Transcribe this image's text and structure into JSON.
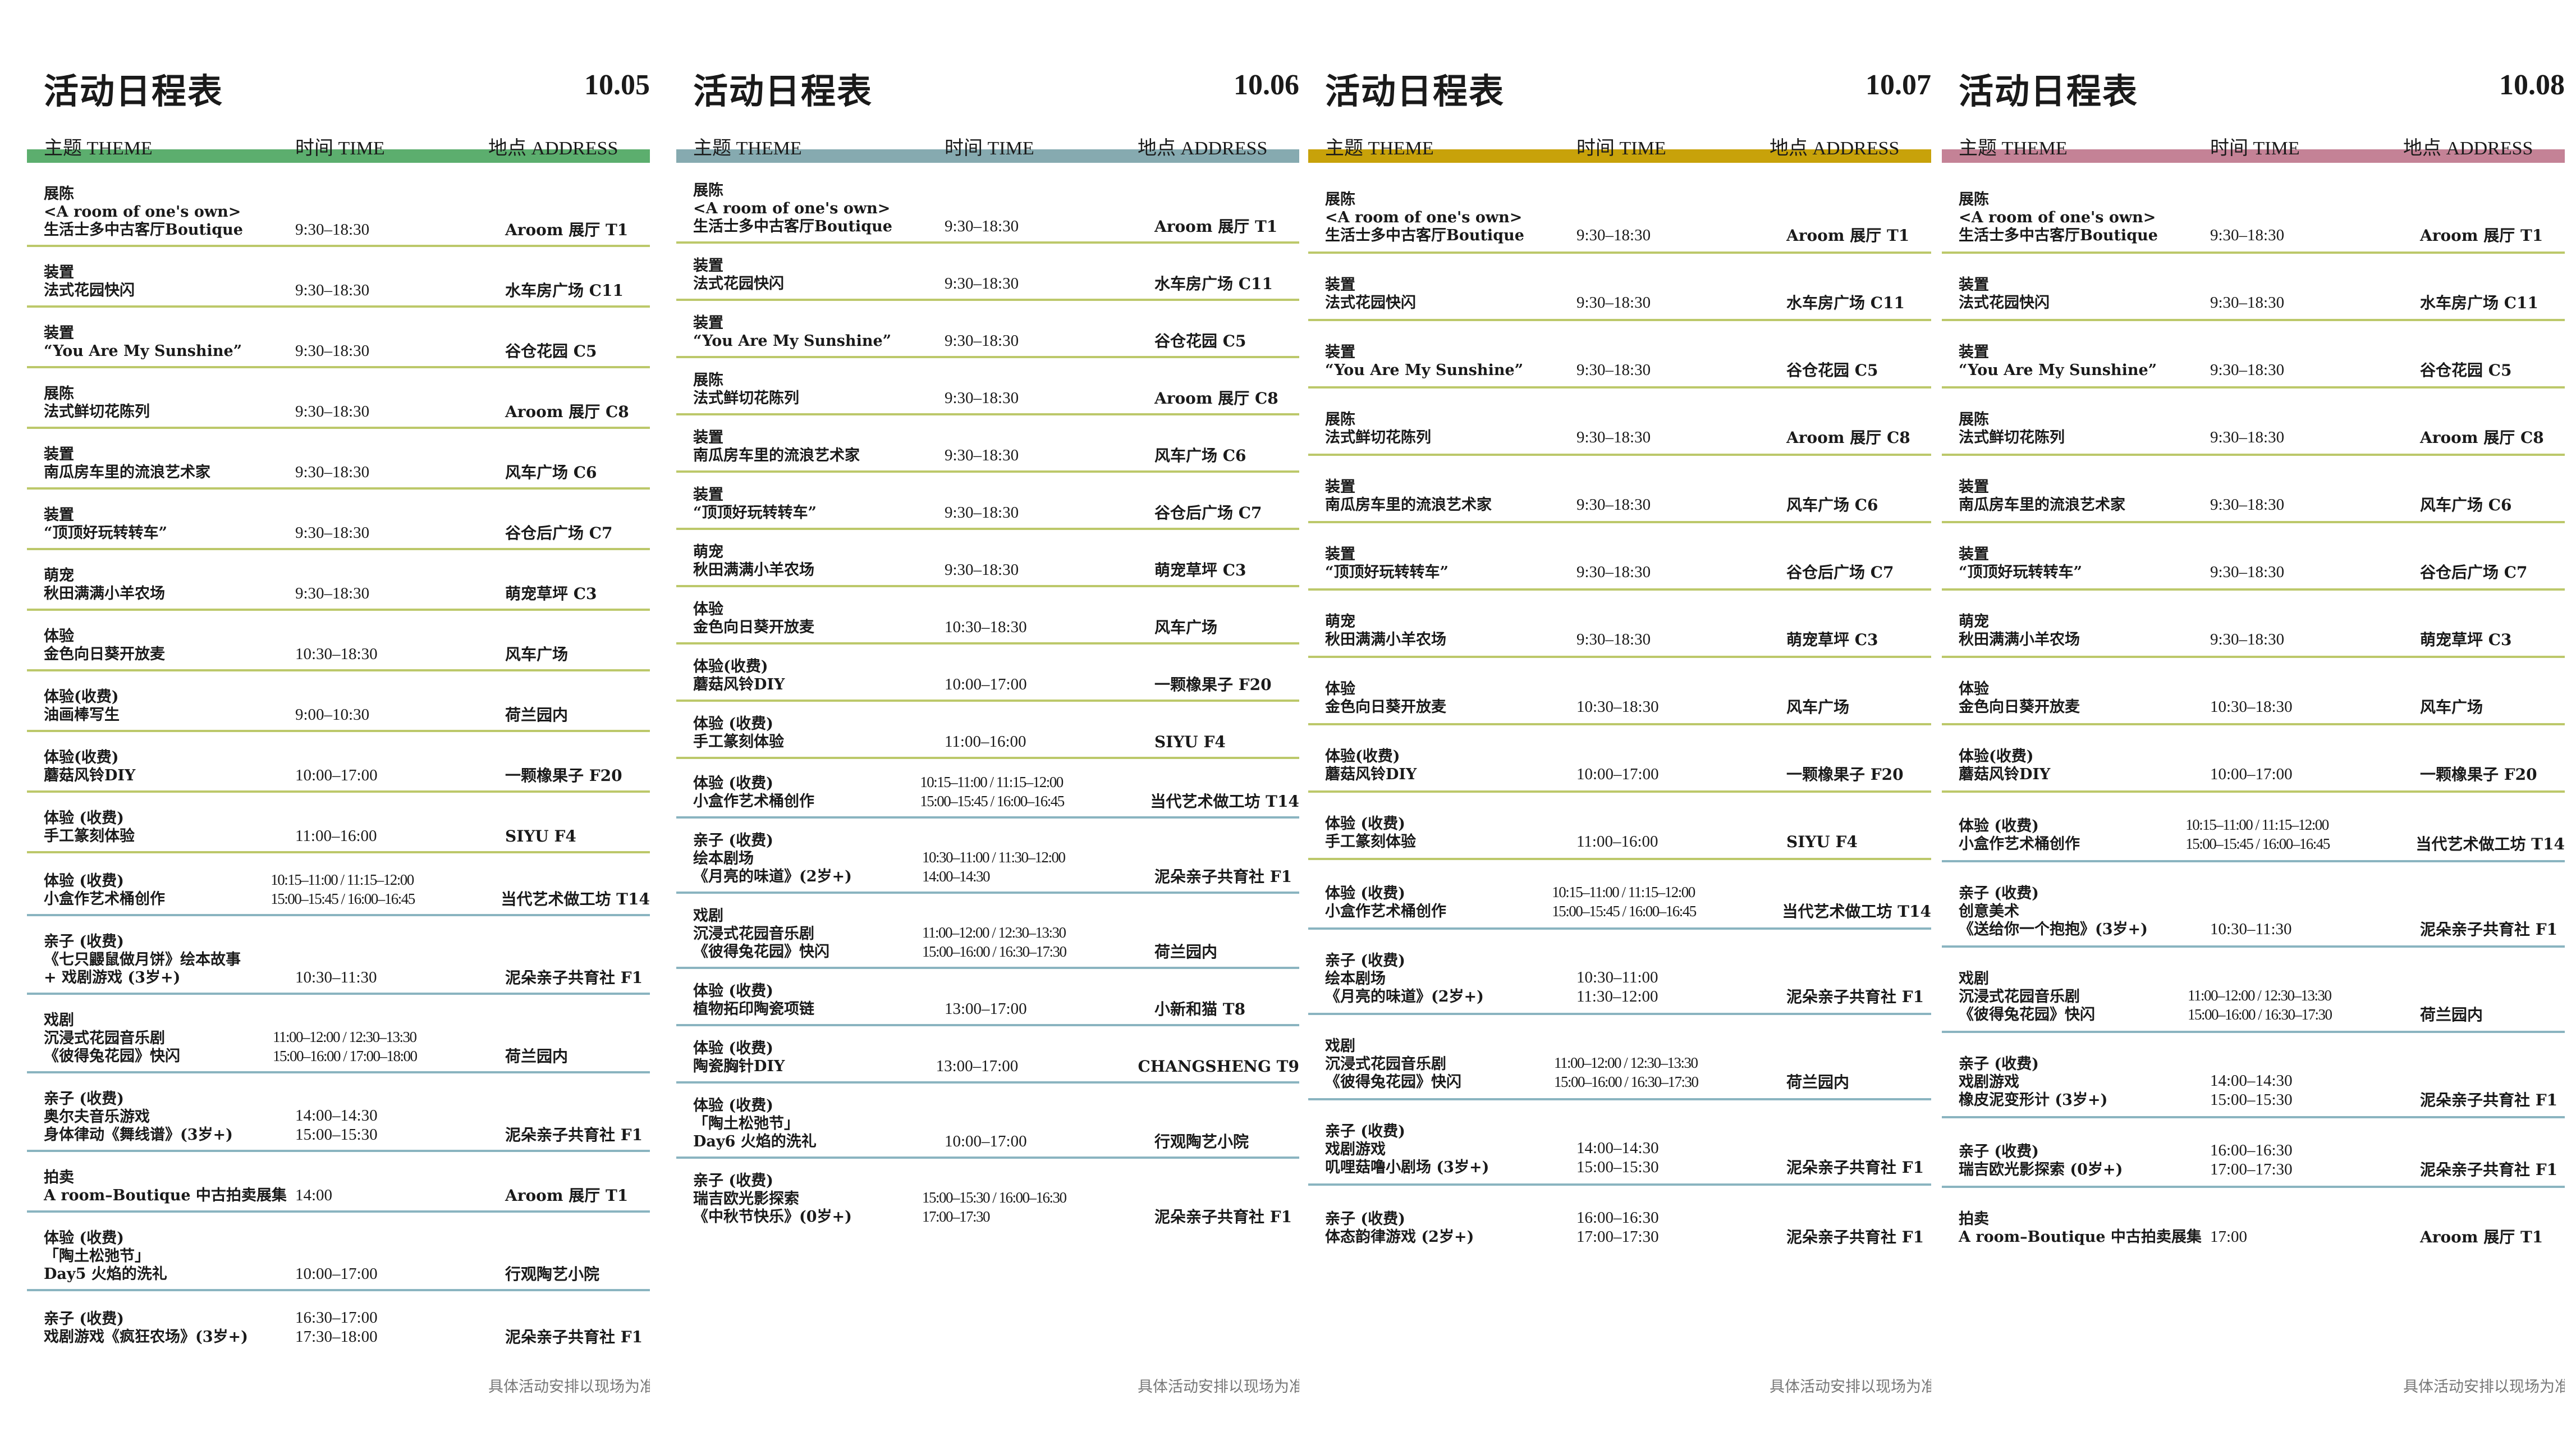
{
  "title": "活动日程表",
  "headers": {
    "theme": "主题 THEME",
    "time": "时间 TIME",
    "address": "地点 ADDRESS"
  },
  "footnote": "具体活动安排以现场为准",
  "colors": {
    "line_olive": "#bcc86a",
    "line_blue": "#8ab4c0"
  },
  "days": [
    {
      "date": "10.05",
      "accent": "#5cae6e",
      "rows": [
        {
          "theme": [
            "展陈",
            "<A room of one's own>",
            "生活士多中古客厅Boutique"
          ],
          "time": [
            "9:30–18:30"
          ],
          "address": "Aroom 展厅 T1",
          "line": "#bcc86a"
        },
        {
          "theme": [
            "装置",
            "法式花园快闪"
          ],
          "time": [
            "9:30–18:30"
          ],
          "address": "水车房广场  C11",
          "line": "#bcc86a"
        },
        {
          "theme": [
            "装置",
            "“You Are My Sunshine”"
          ],
          "time": [
            "9:30–18:30"
          ],
          "address": "谷仓花园 C5",
          "line": "#bcc86a"
        },
        {
          "theme": [
            "展陈",
            "法式鲜切花陈列"
          ],
          "time": [
            "9:30–18:30"
          ],
          "address": "Aroom 展厅 C8",
          "line": "#bcc86a"
        },
        {
          "theme": [
            "装置",
            "南瓜房车里的流浪艺术家"
          ],
          "time": [
            "9:30–18:30"
          ],
          "address": "风车广场 C6",
          "line": "#bcc86a"
        },
        {
          "theme": [
            "装置",
            "“顶顶好玩转转车”"
          ],
          "time": [
            "9:30–18:30"
          ],
          "address": "谷仓后广场 C7",
          "line": "#bcc86a"
        },
        {
          "theme": [
            "萌宠",
            "秋田满满小羊农场"
          ],
          "time": [
            "9:30–18:30"
          ],
          "address": "萌宠草坪 C3",
          "line": "#bcc86a"
        },
        {
          "theme": [
            "体验",
            "金色向日葵开放麦"
          ],
          "time": [
            "10:30–18:30"
          ],
          "address": "风车广场",
          "line": "#bcc86a"
        },
        {
          "theme": [
            "体验(收费)",
            "油画棒写生"
          ],
          "time": [
            "9:00–10:30"
          ],
          "address": "荷兰园内",
          "line": "#bcc86a"
        },
        {
          "theme": [
            "体验(收费)",
            "蘑菇风铃DIY"
          ],
          "time": [
            "10:00–17:00"
          ],
          "address": "一颗橡果子 F20",
          "line": "#bcc86a"
        },
        {
          "theme": [
            "体验 (收费)",
            "手工篆刻体验"
          ],
          "time": [
            "11:00–16:00"
          ],
          "address": "SIYU F4",
          "line": "#bcc86a"
        },
        {
          "theme": [
            "体验 (收费)",
            "小盒作艺术桶创作"
          ],
          "time": [
            "10:15–11:00 / 11:15–12:00",
            "15:00–15:45 / 16:00–16:45"
          ],
          "address": "当代艺术做工坊 T14",
          "line": "#8ab4c0"
        },
        {
          "theme": [
            "亲子 (收费)",
            "《七只鼹鼠做月饼》绘本故事",
            "+ 戏剧游戏 (3岁+)"
          ],
          "time": [
            "10:30–11:30"
          ],
          "address": "泥朵亲子共育社 F1",
          "line": "#8ab4c0"
        },
        {
          "theme": [
            "戏剧",
            "沉浸式花园音乐剧",
            "《彼得兔花园》快闪"
          ],
          "time": [
            "11:00–12:00 / 12:30–13:30",
            "15:00–16:00 / 17:00–18:00"
          ],
          "address": "荷兰园内",
          "line": "#8ab4c0"
        },
        {
          "theme": [
            "亲子 (收费)",
            "奥尔夫音乐游戏",
            "身体律动《舞线谱》(3岁+)"
          ],
          "time": [
            "14:00–14:30",
            "15:00–15:30"
          ],
          "address": "泥朵亲子共育社 F1",
          "line": "#8ab4c0"
        },
        {
          "theme": [
            "拍卖",
            "A room–Boutique 中古拍卖展集"
          ],
          "time": [
            "14:00"
          ],
          "address": "Aroom 展厅 T1",
          "line": "#8ab4c0"
        },
        {
          "theme": [
            "体验 (收费)",
            "「陶土松弛节」",
            "Day5 火焰的洗礼"
          ],
          "time": [
            "10:00–17:00"
          ],
          "address": "行观陶艺小院",
          "line": "#8ab4c0"
        },
        {
          "theme": [
            "亲子 (收费)",
            "戏剧游戏《疯狂农场》(3岁+)"
          ],
          "time": [
            "16:30–17:00",
            "17:30–18:00"
          ],
          "address": "泥朵亲子共育社 F1",
          "line": "#8ab4c0"
        }
      ]
    },
    {
      "date": "10.06",
      "accent": "#86aab0",
      "rows": [
        {
          "theme": [
            "展陈",
            "<A room of one's own>",
            "生活士多中古客厅Boutique"
          ],
          "time": [
            "9:30–18:30"
          ],
          "address": "Aroom 展厅 T1",
          "line": "#bcc86a"
        },
        {
          "theme": [
            "装置",
            "法式花园快闪"
          ],
          "time": [
            "9:30–18:30"
          ],
          "address": "水车房广场  C11",
          "line": "#bcc86a"
        },
        {
          "theme": [
            "装置",
            "“You Are My Sunshine”"
          ],
          "time": [
            "9:30–18:30"
          ],
          "address": "谷仓花园 C5",
          "line": "#bcc86a"
        },
        {
          "theme": [
            "展陈",
            "法式鲜切花陈列"
          ],
          "time": [
            "9:30–18:30"
          ],
          "address": "Aroom 展厅 C8",
          "line": "#bcc86a"
        },
        {
          "theme": [
            "装置",
            "南瓜房车里的流浪艺术家"
          ],
          "time": [
            "9:30–18:30"
          ],
          "address": "风车广场 C6",
          "line": "#bcc86a"
        },
        {
          "theme": [
            "装置",
            "“顶顶好玩转转车”"
          ],
          "time": [
            "9:30–18:30"
          ],
          "address": "谷仓后广场 C7",
          "line": "#bcc86a"
        },
        {
          "theme": [
            "萌宠",
            "秋田满满小羊农场"
          ],
          "time": [
            "9:30–18:30"
          ],
          "address": "萌宠草坪 C3",
          "line": "#bcc86a"
        },
        {
          "theme": [
            "体验",
            "金色向日葵开放麦"
          ],
          "time": [
            "10:30–18:30"
          ],
          "address": "风车广场",
          "line": "#bcc86a"
        },
        {
          "theme": [
            "体验(收费)",
            "蘑菇风铃DIY"
          ],
          "time": [
            "10:00–17:00"
          ],
          "address": "一颗橡果子 F20",
          "line": "#bcc86a"
        },
        {
          "theme": [
            "体验 (收费)",
            "手工篆刻体验"
          ],
          "time": [
            "11:00–16:00"
          ],
          "address": "SIYU F4",
          "line": "#bcc86a"
        },
        {
          "theme": [
            "体验 (收费)",
            "小盒作艺术桶创作"
          ],
          "time": [
            "10:15–11:00 / 11:15–12:00",
            "15:00–15:45 / 16:00–16:45"
          ],
          "address": "当代艺术做工坊 T14",
          "line": "#8ab4c0"
        },
        {
          "theme": [
            "亲子 (收费)",
            "绘本剧场",
            "《月亮的味道》(2岁+)"
          ],
          "time": [
            "10:30–11:00 / 11:30–12:00",
            "14:00–14:30"
          ],
          "address": "泥朵亲子共育社 F1",
          "line": "#8ab4c0"
        },
        {
          "theme": [
            "戏剧",
            "沉浸式花园音乐剧",
            "《彼得兔花园》快闪"
          ],
          "time": [
            "11:00–12:00 / 12:30–13:30",
            "15:00–16:00 / 16:30–17:30"
          ],
          "address": "荷兰园内",
          "line": "#8ab4c0"
        },
        {
          "theme": [
            "体验 (收费)",
            "植物拓印陶瓷项链"
          ],
          "time": [
            "13:00–17:00"
          ],
          "address": "小新和猫 T8",
          "line": "#8ab4c0"
        },
        {
          "theme": [
            "体验 (收费)",
            "陶瓷胸针DIY"
          ],
          "time": [
            "13:00–17:00"
          ],
          "address": "CHANGSHENG T9",
          "line": "#8ab4c0"
        },
        {
          "theme": [
            "体验 (收费)",
            "「陶土松弛节」",
            "Day6 火焰的洗礼"
          ],
          "time": [
            "10:00–17:00"
          ],
          "address": "行观陶艺小院",
          "line": "#8ab4c0"
        },
        {
          "theme": [
            "亲子 (收费)",
            "瑞吉欧光影探索",
            "《中秋节快乐》(0岁+)"
          ],
          "time": [
            "15:00–15:30 / 16:00–16:30",
            "17:00–17:30"
          ],
          "address": "泥朵亲子共育社 F1",
          "line": "#8ab4c0"
        }
      ]
    },
    {
      "date": "10.07",
      "accent": "#c8a20a",
      "rows": [
        {
          "theme": [
            "展陈",
            "<A room of one's own>",
            "生活士多中古客厅Boutique"
          ],
          "time": [
            "9:30–18:30"
          ],
          "address": "Aroom 展厅 T1",
          "line": "#bcc86a"
        },
        {
          "theme": [
            "装置",
            "法式花园快闪"
          ],
          "time": [
            "9:30–18:30"
          ],
          "address": "水车房广场  C11",
          "line": "#bcc86a"
        },
        {
          "theme": [
            "装置",
            "“You Are My Sunshine”"
          ],
          "time": [
            "9:30–18:30"
          ],
          "address": "谷仓花园 C5",
          "line": "#bcc86a"
        },
        {
          "theme": [
            "展陈",
            "法式鲜切花陈列"
          ],
          "time": [
            "9:30–18:30"
          ],
          "address": "Aroom 展厅 C8",
          "line": "#bcc86a"
        },
        {
          "theme": [
            "装置",
            "南瓜房车里的流浪艺术家"
          ],
          "time": [
            "9:30–18:30"
          ],
          "address": "风车广场 C6",
          "line": "#bcc86a"
        },
        {
          "theme": [
            "装置",
            "“顶顶好玩转转车”"
          ],
          "time": [
            "9:30–18:30"
          ],
          "address": "谷仓后广场 C7",
          "line": "#bcc86a"
        },
        {
          "theme": [
            "萌宠",
            "秋田满满小羊农场"
          ],
          "time": [
            "9:30–18:30"
          ],
          "address": "萌宠草坪 C3",
          "line": "#bcc86a"
        },
        {
          "theme": [
            "体验",
            "金色向日葵开放麦"
          ],
          "time": [
            "10:30–18:30"
          ],
          "address": "风车广场",
          "line": "#bcc86a"
        },
        {
          "theme": [
            "体验(收费)",
            "蘑菇风铃DIY"
          ],
          "time": [
            "10:00–17:00"
          ],
          "address": "一颗橡果子 F20",
          "line": "#bcc86a"
        },
        {
          "theme": [
            "体验 (收费)",
            "手工篆刻体验"
          ],
          "time": [
            "11:00–16:00"
          ],
          "address": "SIYU F4",
          "line": "#bcc86a"
        },
        {
          "theme": [
            "体验 (收费)",
            "小盒作艺术桶创作"
          ],
          "time": [
            "10:15–11:00 / 11:15–12:00",
            "15:00–15:45 / 16:00–16:45"
          ],
          "address": "当代艺术做工坊 T14",
          "line": "#8ab4c0"
        },
        {
          "theme": [
            "亲子 (收费)",
            "绘本剧场",
            "《月亮的味道》(2岁+)"
          ],
          "time": [
            "10:30–11:00",
            "11:30–12:00"
          ],
          "address": "泥朵亲子共育社 F1",
          "line": "#8ab4c0"
        },
        {
          "theme": [
            "戏剧",
            "沉浸式花园音乐剧",
            "《彼得兔花园》快闪"
          ],
          "time": [
            "11:00–12:00 / 12:30–13:30",
            "15:00–16:00 / 16:30–17:30"
          ],
          "address": "荷兰园内",
          "line": "#8ab4c0"
        },
        {
          "theme": [
            "亲子 (收费)",
            "戏剧游戏",
            "叽哩菇噜小剧场 (3岁+)"
          ],
          "time": [
            "14:00–14:30",
            "15:00–15:30"
          ],
          "address": "泥朵亲子共育社 F1",
          "line": "#8ab4c0"
        },
        {
          "theme": [
            "亲子 (收费)",
            "体态韵律游戏 (2岁+)"
          ],
          "time": [
            "16:00–16:30",
            "17:00–17:30"
          ],
          "address": "泥朵亲子共育社 F1",
          "line": "#8ab4c0"
        }
      ]
    },
    {
      "date": "10.08",
      "accent": "#c48296",
      "rows": [
        {
          "theme": [
            "展陈",
            "<A room of one's own>",
            "生活士多中古客厅Boutique"
          ],
          "time": [
            "9:30–18:30"
          ],
          "address": "Aroom 展厅 T1",
          "line": "#bcc86a"
        },
        {
          "theme": [
            "装置",
            "法式花园快闪"
          ],
          "time": [
            "9:30–18:30"
          ],
          "address": "水车房广场  C11",
          "line": "#bcc86a"
        },
        {
          "theme": [
            "装置",
            "“You Are My Sunshine”"
          ],
          "time": [
            "9:30–18:30"
          ],
          "address": "谷仓花园 C5",
          "line": "#bcc86a"
        },
        {
          "theme": [
            "展陈",
            "法式鲜切花陈列"
          ],
          "time": [
            "9:30–18:30"
          ],
          "address": "Aroom 展厅 C8",
          "line": "#bcc86a"
        },
        {
          "theme": [
            "装置",
            "南瓜房车里的流浪艺术家"
          ],
          "time": [
            "9:30–18:30"
          ],
          "address": "风车广场 C6",
          "line": "#bcc86a"
        },
        {
          "theme": [
            "装置",
            "“顶顶好玩转转车”"
          ],
          "time": [
            "9:30–18:30"
          ],
          "address": "谷仓后广场 C7",
          "line": "#bcc86a"
        },
        {
          "theme": [
            "萌宠",
            "秋田满满小羊农场"
          ],
          "time": [
            "9:30–18:30"
          ],
          "address": "萌宠草坪 C3",
          "line": "#bcc86a"
        },
        {
          "theme": [
            "体验",
            "金色向日葵开放麦"
          ],
          "time": [
            "10:30–18:30"
          ],
          "address": "风车广场",
          "line": "#bcc86a"
        },
        {
          "theme": [
            "体验(收费)",
            "蘑菇风铃DIY"
          ],
          "time": [
            "10:00–17:00"
          ],
          "address": "一颗橡果子 F20",
          "line": "#bcc86a"
        },
        {
          "theme": [
            "体验 (收费)",
            "小盒作艺术桶创作"
          ],
          "time": [
            "10:15–11:00 / 11:15–12:00",
            "15:00–15:45 / 16:00–16:45"
          ],
          "address": "当代艺术做工坊 T14",
          "line": "#8ab4c0"
        },
        {
          "theme": [
            "亲子 (收费)",
            "创意美术",
            "《送给你一个抱抱》(3岁+)"
          ],
          "time": [
            "10:30–11:30"
          ],
          "address": "泥朵亲子共育社 F1",
          "line": "#8ab4c0"
        },
        {
          "theme": [
            "戏剧",
            "沉浸式花园音乐剧",
            "《彼得兔花园》快闪"
          ],
          "time": [
            "11:00–12:00 / 12:30–13:30",
            "15:00–16:00 / 16:30–17:30"
          ],
          "address": "荷兰园内",
          "line": "#8ab4c0"
        },
        {
          "theme": [
            "亲子 (收费)",
            "戏剧游戏",
            "橡皮泥变形计 (3岁+)"
          ],
          "time": [
            "14:00–14:30",
            "15:00–15:30"
          ],
          "address": "泥朵亲子共育社 F1",
          "line": "#8ab4c0"
        },
        {
          "theme": [
            "亲子 (收费)",
            "瑞吉欧光影探索 (0岁+)"
          ],
          "time": [
            "16:00–16:30",
            "17:00–17:30"
          ],
          "address": "泥朵亲子共育社 F1",
          "line": "#8ab4c0"
        },
        {
          "theme": [
            "拍卖",
            "A room–Boutique 中古拍卖展集"
          ],
          "time": [
            "17:00"
          ],
          "address": "Aroom 展厅 T1",
          "line": "#8ab4c0"
        }
      ]
    }
  ]
}
